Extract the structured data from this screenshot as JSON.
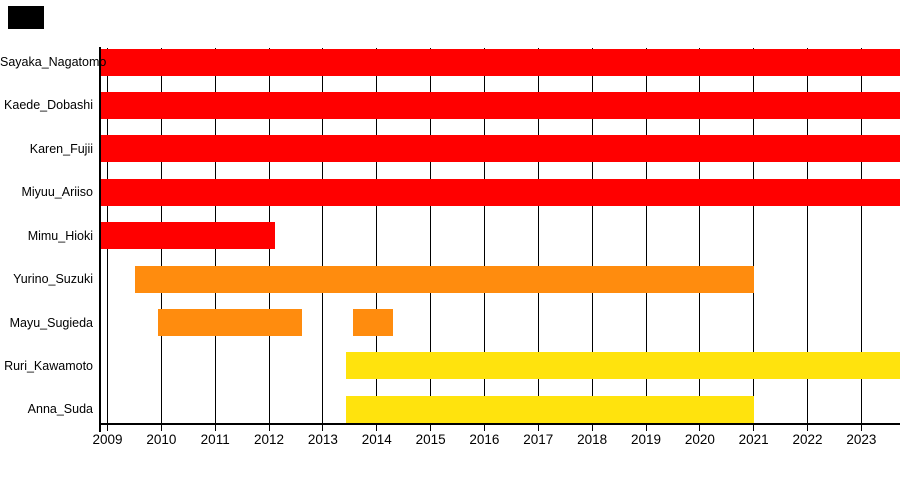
{
  "chart_data": {
    "type": "bar",
    "subtype": "gantt-timeline",
    "title": "",
    "xlabel": "",
    "ylabel": "",
    "x_axis": {
      "tick_labels": [
        "2009",
        "2010",
        "2011",
        "2012",
        "2013",
        "2014",
        "2015",
        "2016",
        "2017",
        "2018",
        "2019",
        "2020",
        "2021",
        "2022",
        "2023"
      ],
      "tick_years": [
        2009,
        2010,
        2011,
        2012,
        2013,
        2014,
        2015,
        2016,
        2017,
        2018,
        2019,
        2020,
        2021,
        2022,
        2023
      ],
      "visible_min": 2008.86,
      "visible_max": 2023.72,
      "grid": true
    },
    "colors": {
      "red": "#ff0000",
      "orange": "#ff8c0e",
      "yellow": "#ffe30d",
      "axis": "#000000"
    },
    "rows": [
      {
        "label": "Sayaka_Nagatomo",
        "color": "#ff0000",
        "segments": [
          [
            2008.86,
            2023.72
          ]
        ]
      },
      {
        "label": "Kaede_Dobashi",
        "color": "#ff0000",
        "segments": [
          [
            2008.86,
            2023.72
          ]
        ]
      },
      {
        "label": "Karen_Fujii",
        "color": "#ff0000",
        "segments": [
          [
            2008.86,
            2023.72
          ]
        ]
      },
      {
        "label": "Miyuu_Ariiso",
        "color": "#ff0000",
        "segments": [
          [
            2008.86,
            2023.72
          ]
        ]
      },
      {
        "label": "Mimu_Hioki",
        "color": "#ff0000",
        "segments": [
          [
            2008.86,
            2012.11
          ]
        ]
      },
      {
        "label": "Yurino_Suzuki",
        "color": "#ff8c0e",
        "segments": [
          [
            2009.51,
            2021.0
          ]
        ]
      },
      {
        "label": "Mayu_Sugieda",
        "color": "#ff8c0e",
        "segments": [
          [
            2009.94,
            2012.61
          ],
          [
            2013.56,
            2014.31
          ]
        ]
      },
      {
        "label": "Ruri_Kawamoto",
        "color": "#ffe30d",
        "segments": [
          [
            2013.43,
            2023.72
          ]
        ]
      },
      {
        "label": "Anna_Suda",
        "color": "#ffe30d",
        "segments": [
          [
            2013.43,
            2021.0
          ]
        ]
      }
    ]
  },
  "decor": {
    "corner_marker_color": "#000000"
  }
}
